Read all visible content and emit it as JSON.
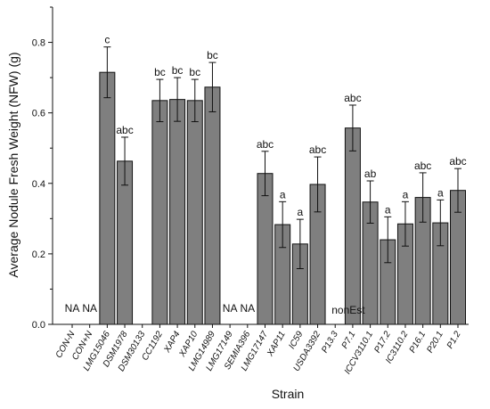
{
  "chart_data": {
    "type": "bar",
    "xlabel": "Strain",
    "ylabel": "Average Nodule Fresh Weight (NFW) (g)",
    "ylim": [
      0,
      0.9
    ],
    "yticks": [
      "0.0",
      "0.2",
      "0.4",
      "0.6",
      "0.8"
    ],
    "ytick_values": [
      0,
      0.2,
      0.4,
      0.6,
      0.8
    ],
    "grid": false,
    "categories": [
      "CON-N",
      "CON+N",
      "LMG15046",
      "DSM1978",
      "DSM30133",
      "CC1192",
      "XAP4",
      "XAP10",
      "LMG14989",
      "LMG17149",
      "SEMIA396",
      "LMG17147",
      "XAP11",
      "IC59",
      "USDA3392",
      "P13.3",
      "P7.1",
      "ICCV3110.1",
      "P17.2",
      "IC3110.2",
      "P16.1",
      "P20.1",
      "P1.2"
    ],
    "values": [
      null,
      null,
      0.715,
      0.463,
      null,
      0.635,
      0.638,
      0.635,
      0.673,
      null,
      null,
      0.428,
      0.283,
      0.228,
      0.397,
      null,
      0.557,
      0.347,
      0.24,
      0.285,
      0.36,
      0.288,
      0.38
    ],
    "errors": [
      null,
      null,
      0.072,
      0.068,
      null,
      0.06,
      0.062,
      0.06,
      0.07,
      null,
      null,
      0.063,
      0.065,
      0.07,
      0.078,
      null,
      0.065,
      0.06,
      0.065,
      0.063,
      0.07,
      0.065,
      0.062
    ],
    "annotations": [
      "NA",
      "NA",
      "c",
      "abc",
      "",
      "bc",
      "bc",
      "bc",
      "bc",
      "NA",
      "NA",
      "abc",
      "a",
      "a",
      "abc",
      "nonEst",
      "abc",
      "ab",
      "a",
      "a",
      "abc",
      "a",
      "abc"
    ],
    "bar_color": "#7f7f7f",
    "edge_color": "#111111"
  }
}
